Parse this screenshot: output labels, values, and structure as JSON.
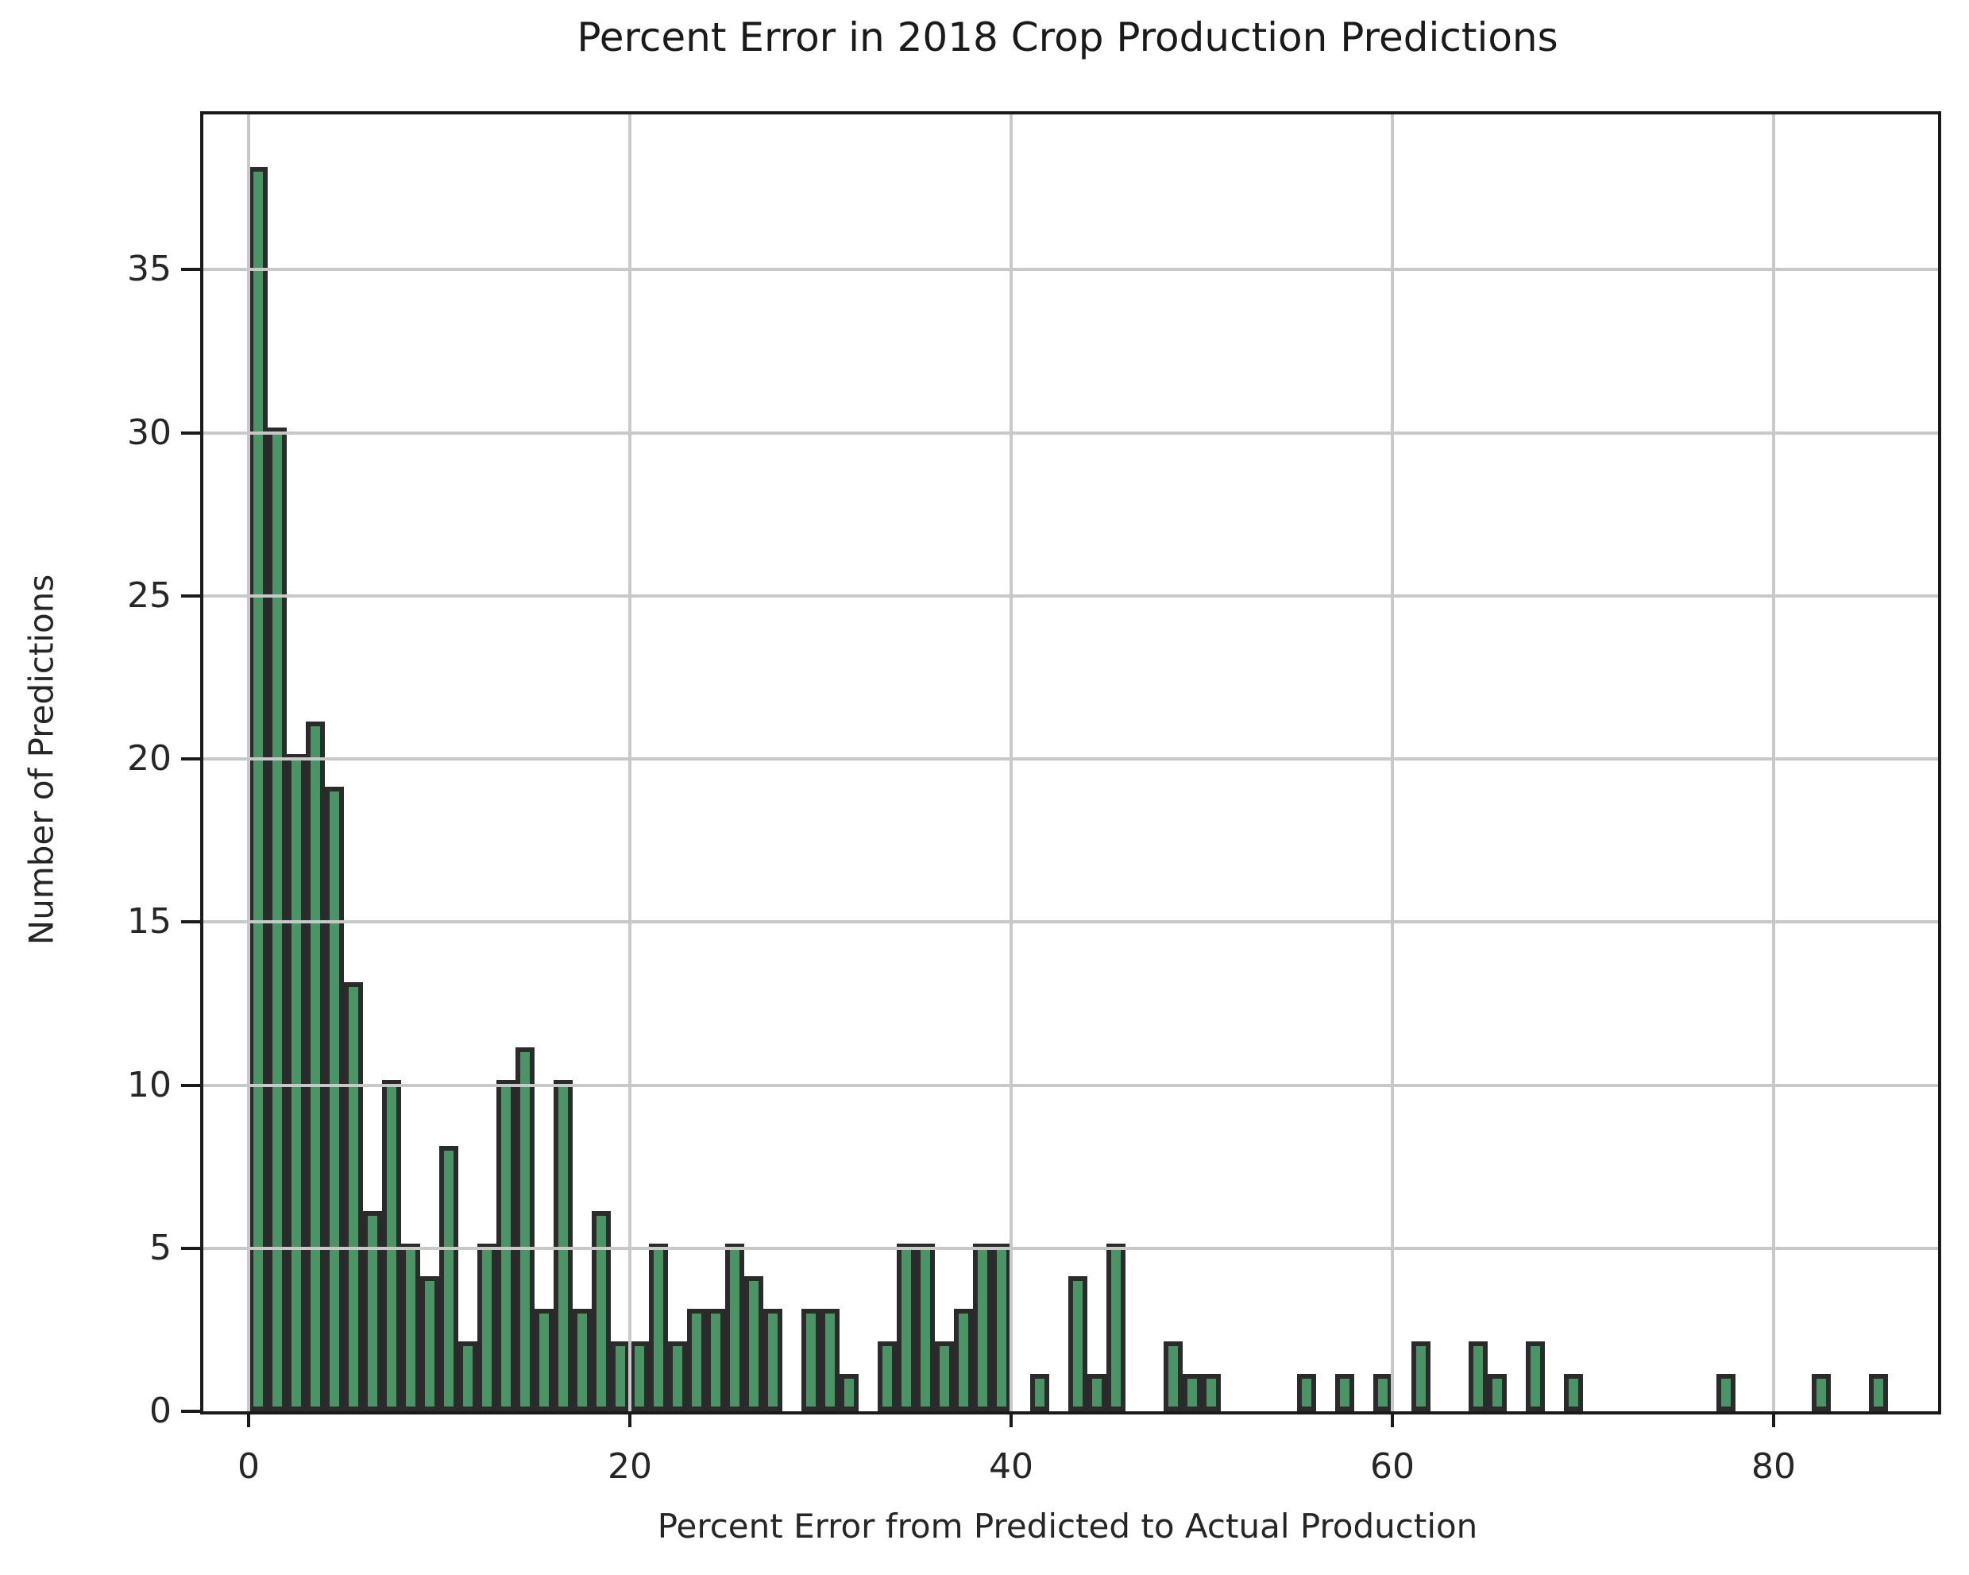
{
  "chart_data": {
    "type": "bar",
    "title": "Percent Error in 2018 Crop Production Predictions",
    "xlabel": "Percent Error from Predicted to Actual Production",
    "ylabel": "Number of Predictions",
    "bin_width": 1,
    "bin_start": 0,
    "categories_note": "histogram bins, percent error 0-86 in 1% bins",
    "values": [
      38,
      30,
      20,
      21,
      19,
      13,
      6,
      10,
      5,
      4,
      8,
      2,
      5,
      10,
      11,
      3,
      10,
      3,
      6,
      2,
      2,
      5,
      2,
      3,
      3,
      5,
      4,
      3,
      0,
      3,
      3,
      1,
      0,
      2,
      5,
      5,
      2,
      3,
      5,
      5,
      0,
      1,
      0,
      4,
      1,
      5,
      0,
      0,
      2,
      1,
      1,
      0,
      0,
      0,
      0,
      1,
      0,
      1,
      0,
      1,
      0,
      2,
      0,
      0,
      2,
      1,
      0,
      2,
      0,
      1,
      0,
      0,
      0,
      0,
      0,
      0,
      0,
      1,
      0,
      0,
      0,
      0,
      1,
      0,
      0,
      1
    ],
    "x_ticks": [
      0,
      20,
      40,
      60,
      80
    ],
    "x_tick_labels": [
      "0",
      "20",
      "40",
      "60",
      "80"
    ],
    "y_ticks": [
      0,
      5,
      10,
      15,
      20,
      25,
      30,
      35
    ],
    "y_tick_labels": [
      "0",
      "5",
      "10",
      "15",
      "20",
      "25",
      "30",
      "35"
    ],
    "xlim": [
      -2.4,
      88.6
    ],
    "ylim": [
      0,
      39.7
    ],
    "grid": "both, light gray, drawn above bars",
    "legend_position": "none",
    "bar_fill_color": "#4a9565",
    "bar_edge_color": "#2b2b2b",
    "grid_color": "#c8c8c8",
    "spine_color": "#1a1a1a",
    "text_color": "#262626",
    "background_color": "#ffffff"
  }
}
